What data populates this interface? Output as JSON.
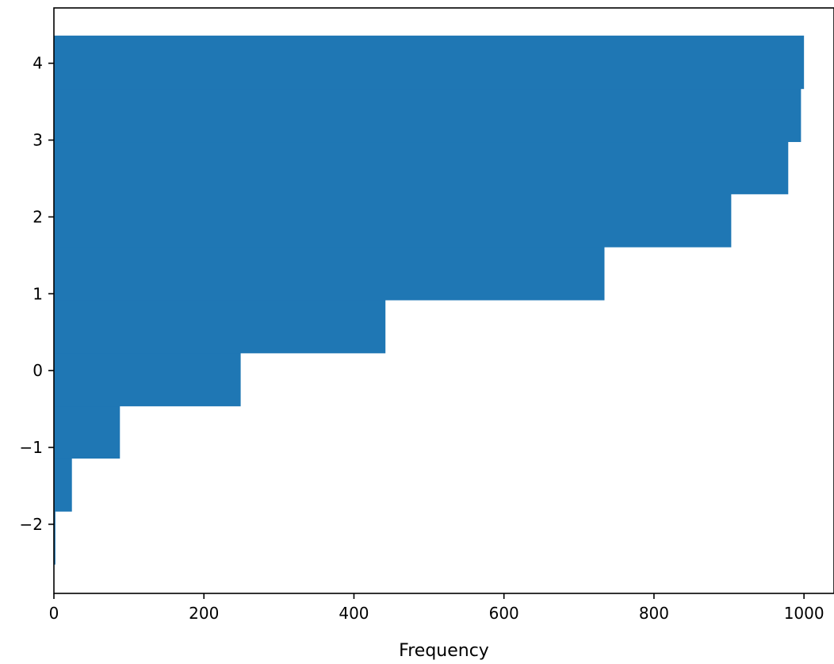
{
  "chart_data": {
    "type": "bar",
    "orientation": "horizontal",
    "cumulative": true,
    "xlabel": "Frequency",
    "ylabel": "",
    "xlim": [
      0,
      1040
    ],
    "ylim": [
      -2.9,
      4.72
    ],
    "xticks": [
      0,
      200,
      400,
      600,
      800,
      1000
    ],
    "xtick_labels": [
      "0",
      "200",
      "400",
      "600",
      "800",
      "1000"
    ],
    "yticks": [
      -2,
      -1,
      0,
      1,
      2,
      3,
      4
    ],
    "ytick_labels": [
      "−2",
      "−1",
      "0",
      "1",
      "2",
      "3",
      "4"
    ],
    "bins": [
      {
        "from": -2.52,
        "to": -1.83,
        "value": 2
      },
      {
        "from": -1.83,
        "to": -1.14,
        "value": 24
      },
      {
        "from": -1.14,
        "to": -0.46,
        "value": 88
      },
      {
        "from": -0.46,
        "to": 0.23,
        "value": 249
      },
      {
        "from": 0.23,
        "to": 0.92,
        "value": 442
      },
      {
        "from": 0.92,
        "to": 1.61,
        "value": 734
      },
      {
        "from": 1.61,
        "to": 2.3,
        "value": 903
      },
      {
        "from": 2.3,
        "to": 2.98,
        "value": 979
      },
      {
        "from": 2.98,
        "to": 3.67,
        "value": 996
      },
      {
        "from": 3.67,
        "to": 4.36,
        "value": 1000
      }
    ],
    "bar_color": "#1f77b4",
    "grid": false,
    "legend": "none"
  }
}
